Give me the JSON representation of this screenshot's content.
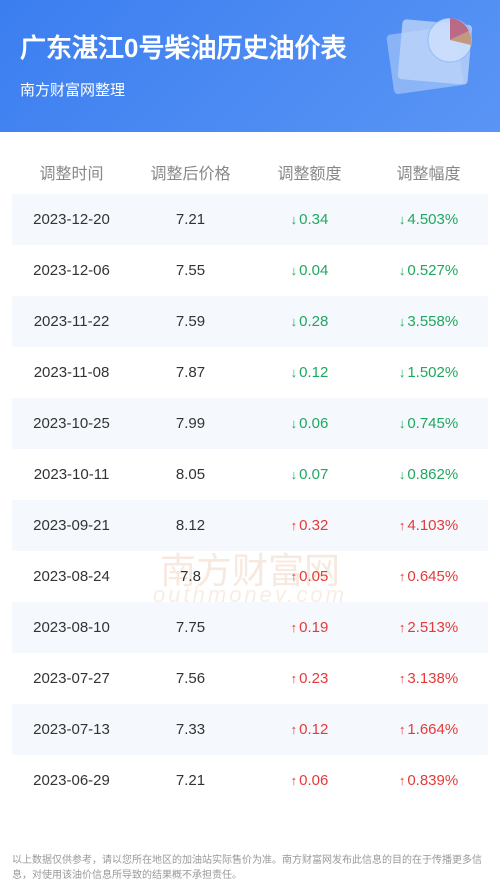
{
  "header": {
    "title": "广东湛江0号柴油历史油价表",
    "subtitle": "南方财富网整理",
    "bg_gradient_start": "#3b7ef0",
    "bg_gradient_end": "#5a95f5",
    "title_color": "#ffffff",
    "title_fontsize": 26,
    "subtitle_fontsize": 15
  },
  "watermark": {
    "main": "南方财富网",
    "sub": "outhmoney.com",
    "color": "#f0d4c0"
  },
  "table": {
    "columns": [
      "调整时间",
      "调整后价格",
      "调整额度",
      "调整幅度"
    ],
    "header_color": "#888888",
    "header_fontsize": 16,
    "cell_fontsize": 15,
    "cell_color": "#333333",
    "down_color": "#1fa860",
    "up_color": "#e63939",
    "stripe_bg": "#f5f8fc",
    "rows": [
      {
        "date": "2023-12-20",
        "price": "7.21",
        "delta": "-0.34",
        "pct": "-4.503%",
        "dir": "down"
      },
      {
        "date": "2023-12-06",
        "price": "7.55",
        "delta": "-0.04",
        "pct": "-0.527%",
        "dir": "down"
      },
      {
        "date": "2023-11-22",
        "price": "7.59",
        "delta": "-0.28",
        "pct": "-3.558%",
        "dir": "down"
      },
      {
        "date": "2023-11-08",
        "price": "7.87",
        "delta": "-0.12",
        "pct": "-1.502%",
        "dir": "down"
      },
      {
        "date": "2023-10-25",
        "price": "7.99",
        "delta": "-0.06",
        "pct": "-0.745%",
        "dir": "down"
      },
      {
        "date": "2023-10-11",
        "price": "8.05",
        "delta": "-0.07",
        "pct": "-0.862%",
        "dir": "down"
      },
      {
        "date": "2023-09-21",
        "price": "8.12",
        "delta": "0.32",
        "pct": "4.103%",
        "dir": "up"
      },
      {
        "date": "2023-08-24",
        "price": "7.8",
        "delta": "0.05",
        "pct": "0.645%",
        "dir": "up"
      },
      {
        "date": "2023-08-10",
        "price": "7.75",
        "delta": "0.19",
        "pct": "2.513%",
        "dir": "up"
      },
      {
        "date": "2023-07-27",
        "price": "7.56",
        "delta": "0.23",
        "pct": "3.138%",
        "dir": "up"
      },
      {
        "date": "2023-07-13",
        "price": "7.33",
        "delta": "0.12",
        "pct": "1.664%",
        "dir": "up"
      },
      {
        "date": "2023-06-29",
        "price": "7.21",
        "delta": "0.06",
        "pct": "0.839%",
        "dir": "up"
      }
    ]
  },
  "footer": {
    "text": "以上数据仅供参考，请以您所在地区的加油站实际售价为准。南方财富网发布此信息的目的在于传播更多信息，对使用该油价信息所导致的结果概不承担责任。",
    "color": "#999999",
    "fontsize": 10
  },
  "decoration": {
    "pie_stroke": "#ffffff",
    "pie_slice_red": "#e65a5a",
    "pie_slice_orange": "#f0a050",
    "paper_fill": "#dbe9fb"
  }
}
